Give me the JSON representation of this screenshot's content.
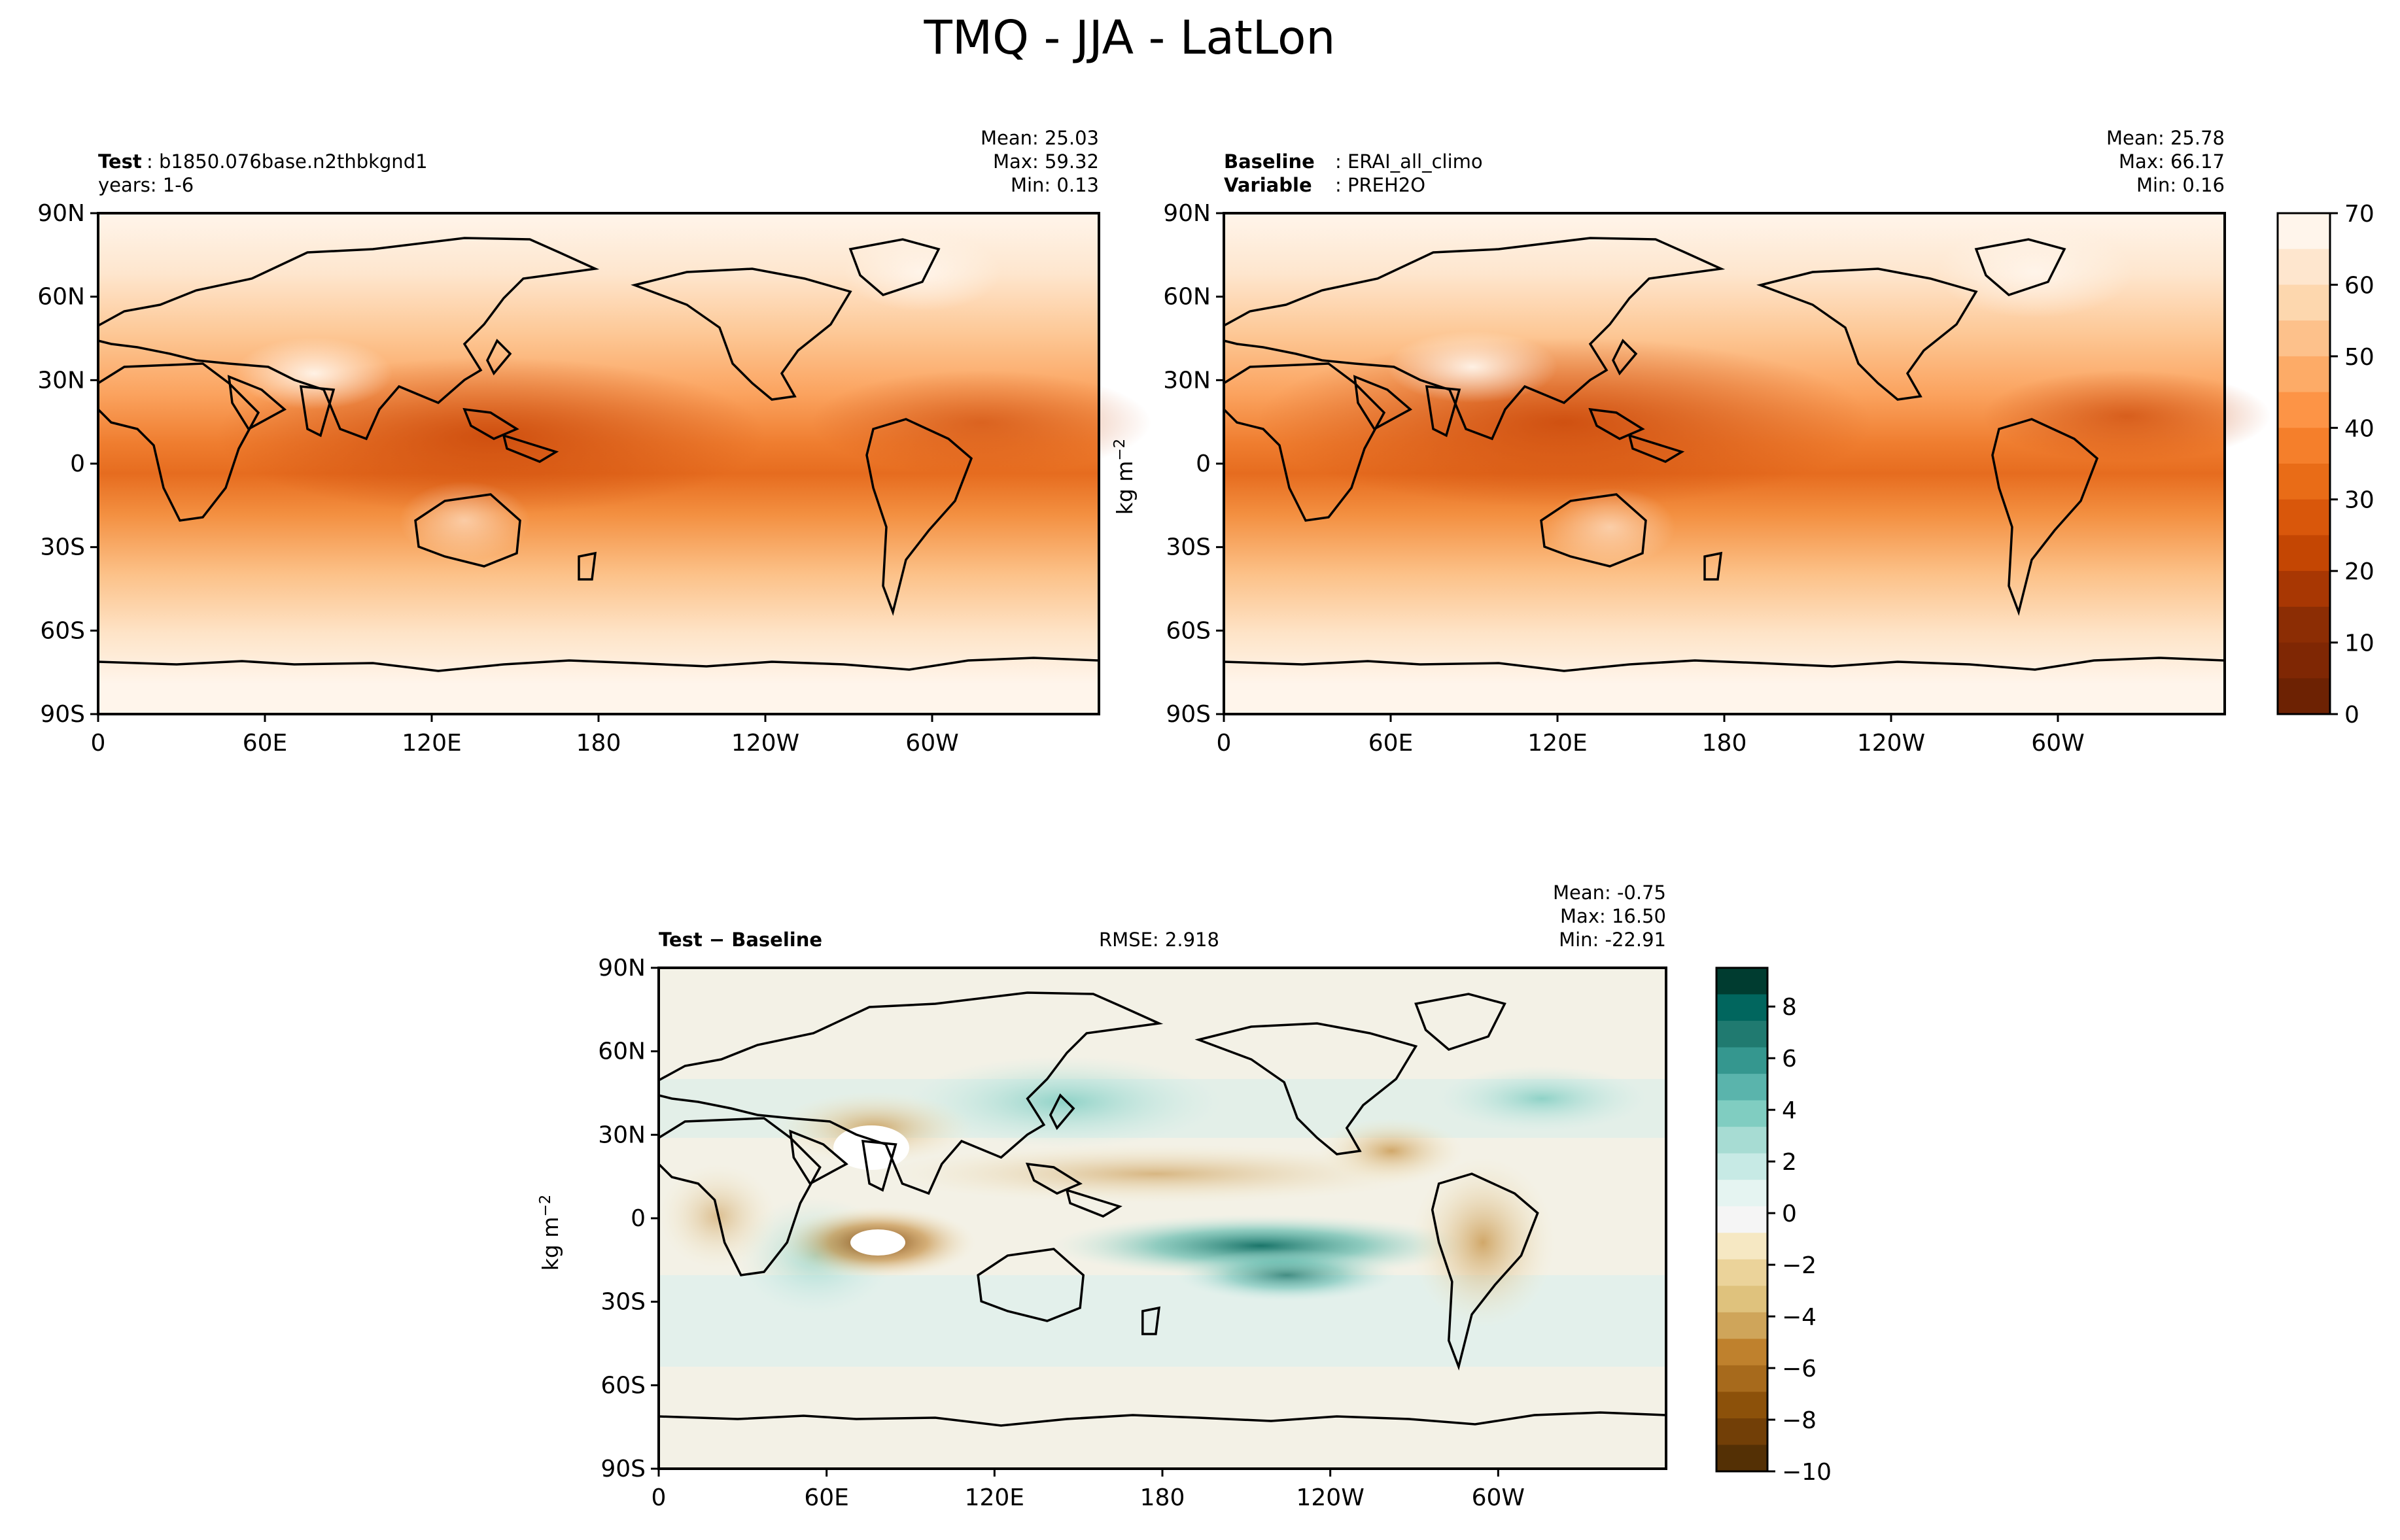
{
  "figure": {
    "title": "TMQ - JJA - LatLon"
  },
  "panels": {
    "test": {
      "title_bold": "Test",
      "title_rest": ": b1850.076base.n2thbkgnd1",
      "subtitle": "years: 1-6",
      "stats": {
        "mean": "Mean: 25.03",
        "max": "Max: 59.32",
        "min": "Min:  0.13"
      }
    },
    "baseline": {
      "title_bold": "Baseline",
      "title_rest": ": ERAI_all_climo",
      "subtitle_bold": "Variable",
      "subtitle_rest": ": PREH2O",
      "stats": {
        "mean": "Mean: 25.78",
        "max": "Max: 66.17",
        "min": "Min:  0.16"
      }
    },
    "diff": {
      "title": "Test − Baseline",
      "rmse": "RMSE: 2.918",
      "stats": {
        "mean": "Mean: -0.75",
        "max": "Max: 16.50",
        "min": "Min: -22.91"
      }
    }
  },
  "units_label": "kg m",
  "units_exp": "−2",
  "chart_data": [
    {
      "type": "heatmap",
      "panel": "test",
      "xticks": [
        "0",
        "60E",
        "120E",
        "180",
        "120W",
        "60W"
      ],
      "yticks": [
        "90N",
        "60N",
        "30N",
        "0",
        "30S",
        "60S",
        "90S"
      ],
      "xlim": [
        0,
        360
      ],
      "ylim": [
        -90,
        90
      ],
      "colormap": "Oranges",
      "levels": [
        0,
        5,
        10,
        15,
        20,
        25,
        30,
        35,
        40,
        45,
        50,
        55,
        60,
        65,
        70
      ]
    },
    {
      "type": "heatmap",
      "panel": "baseline",
      "xticks": [
        "0",
        "60E",
        "120E",
        "180",
        "120W",
        "60W"
      ],
      "yticks": [
        "90N",
        "60N",
        "30N",
        "0",
        "30S",
        "60S",
        "90S"
      ],
      "xlim": [
        0,
        360
      ],
      "ylim": [
        -90,
        90
      ],
      "colormap": "Oranges",
      "colorbar_ticks": [
        "0",
        "10",
        "20",
        "30",
        "40",
        "50",
        "60",
        "70"
      ],
      "colorbar_range": [
        0,
        70
      ]
    },
    {
      "type": "heatmap",
      "panel": "diff",
      "xticks": [
        "0",
        "60E",
        "120E",
        "180",
        "120W",
        "60W"
      ],
      "yticks": [
        "90N",
        "60N",
        "30N",
        "0",
        "30S",
        "60S",
        "90S"
      ],
      "xlim": [
        0,
        360
      ],
      "ylim": [
        -90,
        90
      ],
      "colormap": "BrBG",
      "colorbar_ticks": [
        "8",
        "6",
        "4",
        "2",
        "0",
        "−2",
        "−4",
        "−6",
        "−8",
        "−10"
      ],
      "colorbar_range": [
        -10,
        9.5
      ]
    }
  ]
}
